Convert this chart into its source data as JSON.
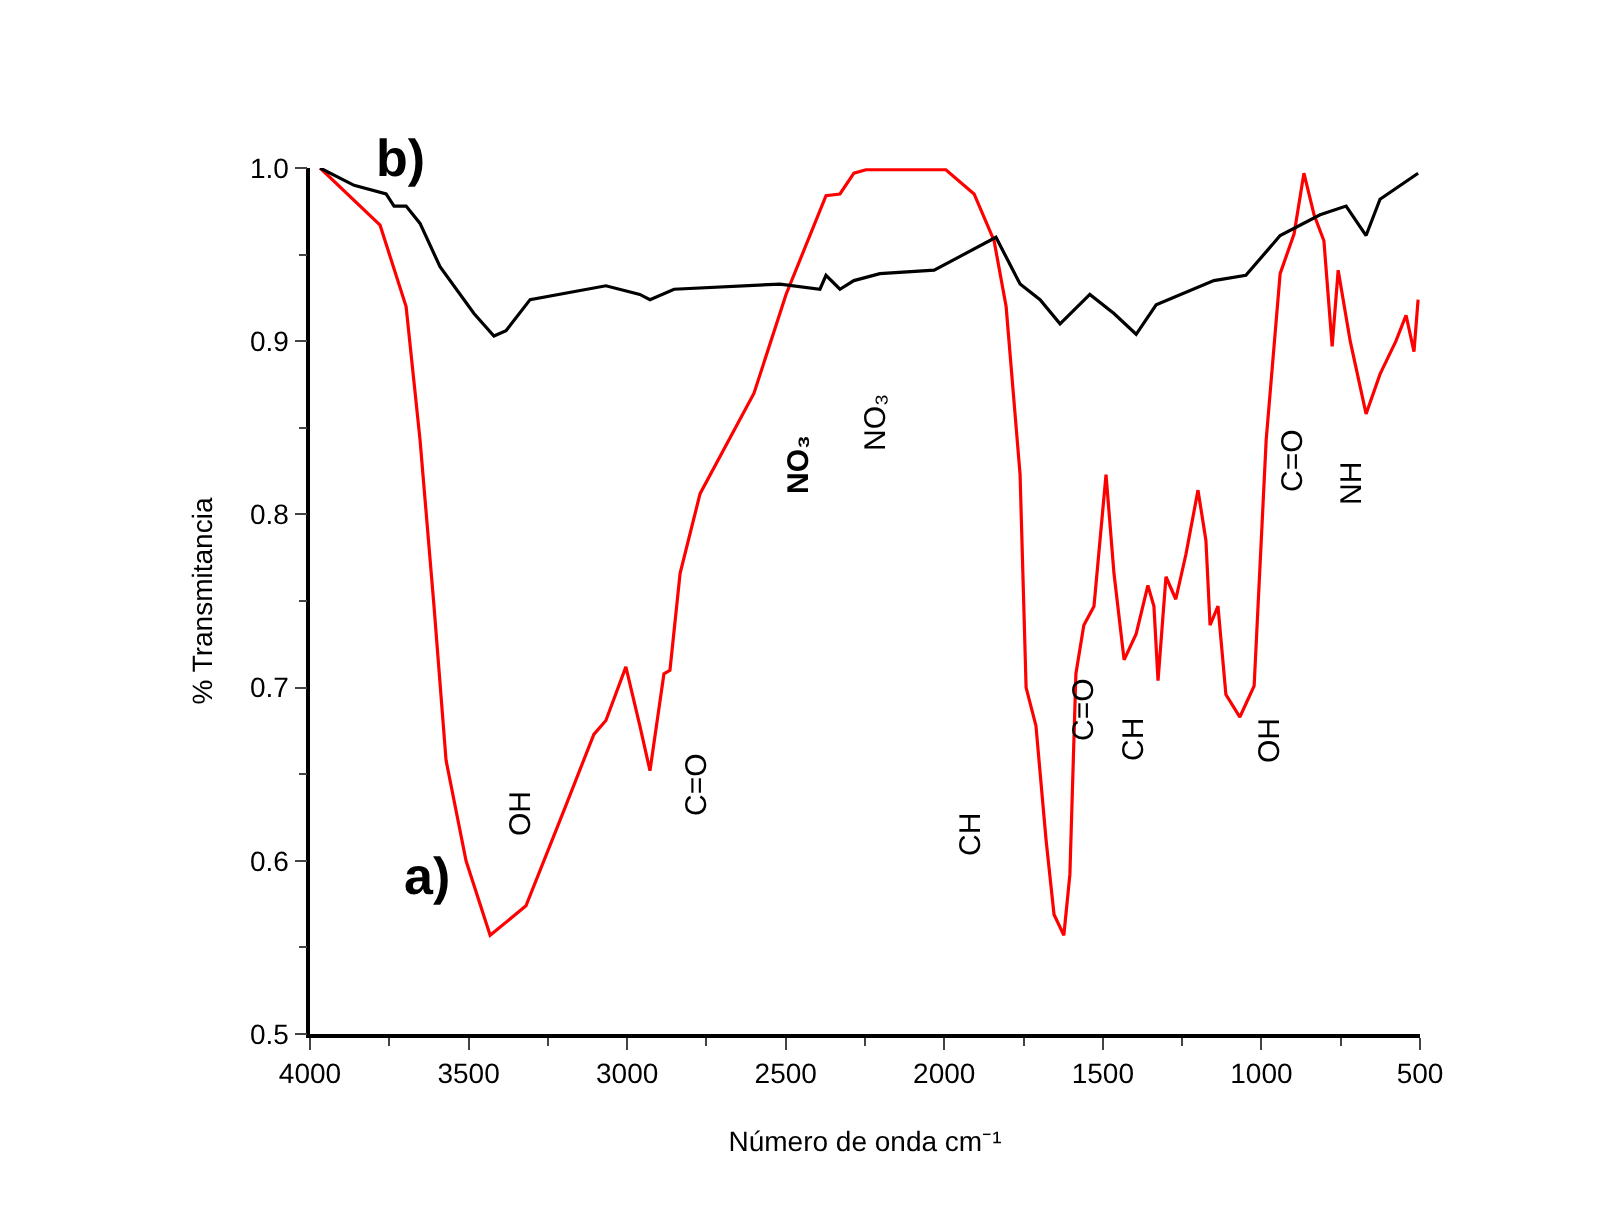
{
  "chart_data": {
    "type": "line",
    "xlabel": "Número de onda cm⁻¹",
    "ylabel": "% Transmitancia",
    "xlim": [
      4000,
      500
    ],
    "xticks": [
      4000,
      3500,
      3000,
      2500,
      2000,
      1500,
      1000,
      500
    ],
    "ylim": [
      0.5,
      1.0
    ],
    "yticks": [
      {
        "value": 0.5,
        "label": "0.5"
      },
      {
        "value": 0.6,
        "label": "0.6"
      },
      {
        "value": 0.7,
        "label": "0.7"
      },
      {
        "value": 0.8,
        "label": "0.8"
      },
      {
        "value": 0.9,
        "label": "0.9"
      },
      {
        "value": 1.0,
        "label": "1.0"
      }
    ],
    "series": [
      {
        "color": "#ff0000",
        "x": [
          3968,
          3779,
          3697,
          3653,
          3609,
          3571,
          3508,
          3432,
          3319,
          3193,
          3105,
          3067,
          3004,
          2960,
          2928,
          2884,
          2865,
          2833,
          2770,
          2600,
          2499,
          2373,
          2329,
          2285,
          2247,
          1995,
          1906,
          1843,
          1805,
          1761,
          1742,
          1711,
          1679,
          1654,
          1623,
          1604,
          1585,
          1560,
          1528,
          1490,
          1465,
          1433,
          1395,
          1358,
          1339,
          1326,
          1301,
          1270,
          1238,
          1200,
          1175,
          1162,
          1137,
          1112,
          1068,
          1023,
          985,
          941,
          897,
          866,
          834,
          803,
          777,
          758,
          720,
          670,
          626,
          576,
          544,
          519,
          506
        ],
        "values": [
          1.0,
          0.967,
          0.92,
          0.843,
          0.747,
          0.658,
          0.6,
          0.557,
          0.574,
          0.632,
          0.673,
          0.681,
          0.712,
          0.678,
          0.652,
          0.708,
          0.71,
          0.766,
          0.812,
          0.87,
          0.927,
          0.984,
          0.985,
          0.997,
          0.999,
          0.999,
          0.985,
          0.958,
          0.92,
          0.823,
          0.7,
          0.678,
          0.612,
          0.569,
          0.557,
          0.592,
          0.708,
          0.736,
          0.747,
          0.823,
          0.766,
          0.716,
          0.731,
          0.759,
          0.747,
          0.704,
          0.764,
          0.751,
          0.777,
          0.814,
          0.785,
          0.736,
          0.747,
          0.696,
          0.683,
          0.701,
          0.843,
          0.939,
          0.962,
          0.997,
          0.973,
          0.958,
          0.897,
          0.941,
          0.9,
          0.858,
          0.881,
          0.9,
          0.915,
          0.894,
          0.924
        ]
      },
      {
        "color": "#000000",
        "x": [
          3968,
          3861,
          3760,
          3735,
          3697,
          3653,
          3590,
          3483,
          3420,
          3382,
          3306,
          3067,
          2960,
          2928,
          2852,
          2518,
          2392,
          2373,
          2329,
          2285,
          2203,
          2032,
          1950,
          1837,
          1761,
          1698,
          1635,
          1541,
          1465,
          1395,
          1332,
          1150,
          1049,
          941,
          815,
          733,
          670,
          626,
          506
        ],
        "values": [
          1.0,
          0.99,
          0.985,
          0.978,
          0.978,
          0.968,
          0.943,
          0.916,
          0.903,
          0.906,
          0.924,
          0.932,
          0.927,
          0.924,
          0.93,
          0.933,
          0.93,
          0.938,
          0.93,
          0.935,
          0.939,
          0.941,
          0.949,
          0.96,
          0.933,
          0.924,
          0.91,
          0.927,
          0.916,
          0.904,
          0.921,
          0.935,
          0.938,
          0.961,
          0.973,
          0.978,
          0.961,
          0.982,
          0.997
        ]
      }
    ],
    "annotations": [
      "OH",
      "C=O",
      "NO₃",
      "NO₃",
      "CH",
      "C=O",
      "CH",
      "OH",
      "C=O",
      "NH",
      "a)",
      "b)"
    ]
  }
}
